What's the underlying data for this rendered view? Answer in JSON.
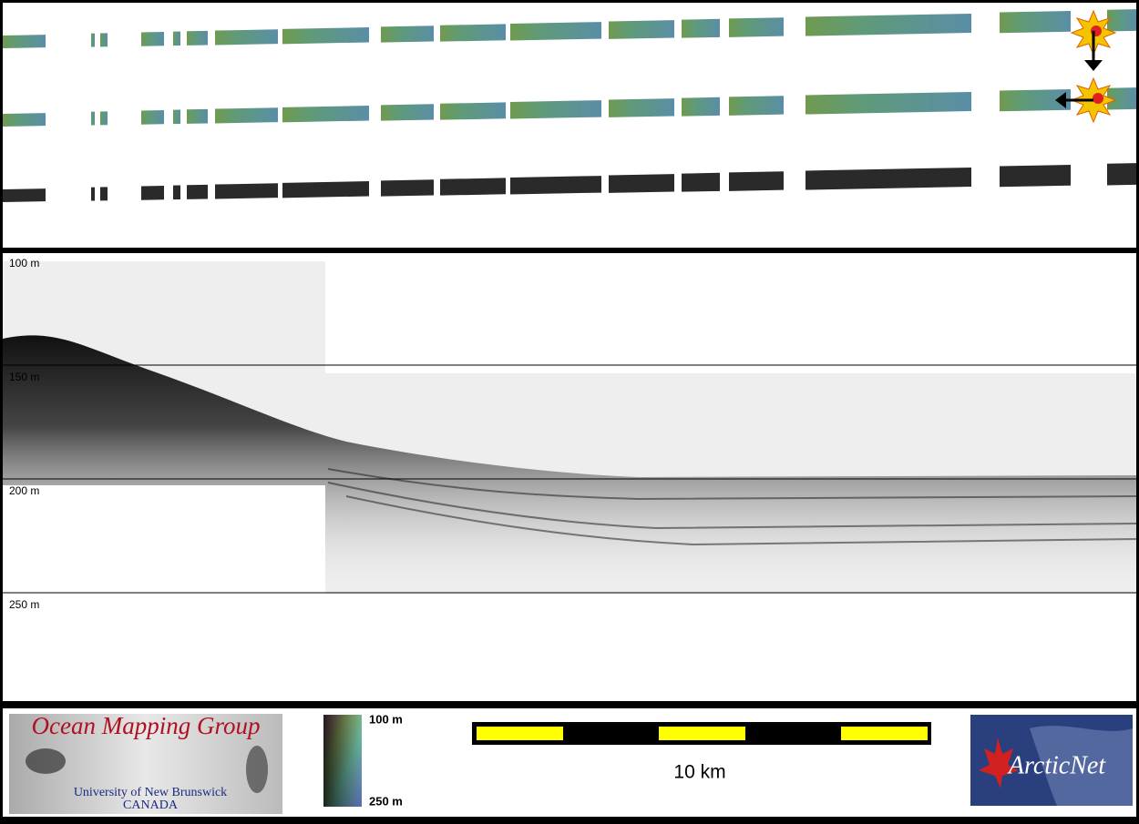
{
  "profile": {
    "depth_labels": [
      "100 m",
      "150 m",
      "200 m",
      "250 m"
    ]
  },
  "colorbar": {
    "top_label": "100 m",
    "bottom_label": "250 m"
  },
  "scale_bar": {
    "label": "10 km"
  },
  "logos": {
    "omg": {
      "title": "Ocean Mapping Group",
      "line1": "University of New Brunswick",
      "line2": "CANADA"
    },
    "arcticnet": {
      "name": "ArcticNet"
    }
  }
}
